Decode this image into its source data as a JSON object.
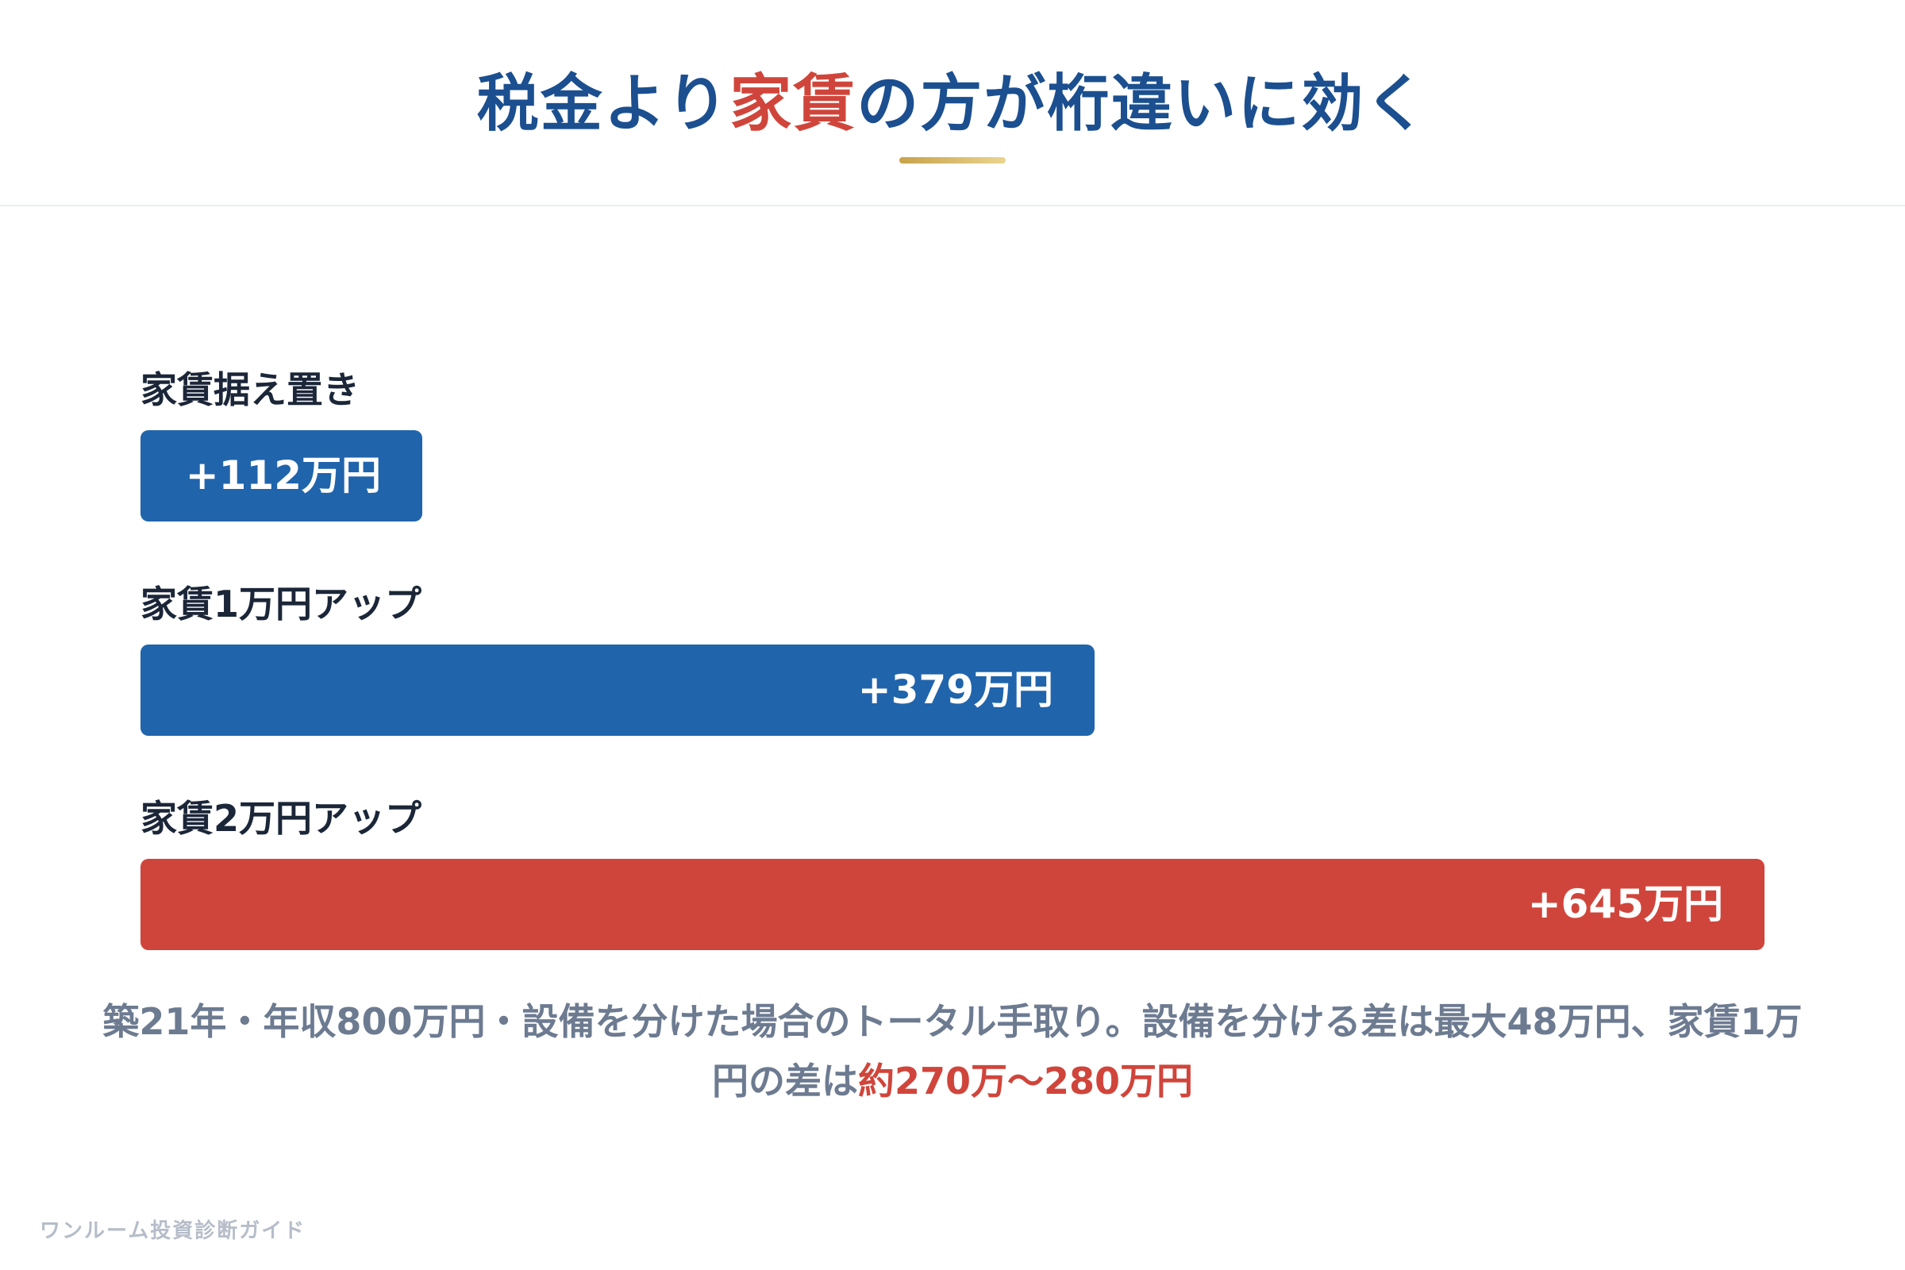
{
  "header": {
    "title_pre": "税金より",
    "title_accent": "家賃",
    "title_post": "の方が桁違いに効く"
  },
  "chart_data": {
    "type": "bar",
    "orientation": "horizontal",
    "categories": [
      "家賃据え置き",
      "家賃1万円アップ",
      "家賃2万円アップ"
    ],
    "values": [
      112,
      379,
      645
    ],
    "value_labels": [
      "+112万円",
      "+379万円",
      "+645万円"
    ],
    "colors": [
      "#2064ac",
      "#2064ac",
      "#d0453b"
    ],
    "xlim": [
      0,
      645
    ],
    "grid": false
  },
  "caption": {
    "text": "築21年・年収800万円・設備を分けた場合のトータル手取り。設備を分ける差は最大48万円、家賃1万円の差は",
    "highlight": "約270万〜280万円"
  },
  "footer": {
    "brand": "ワンルーム投資診断ガイド"
  }
}
